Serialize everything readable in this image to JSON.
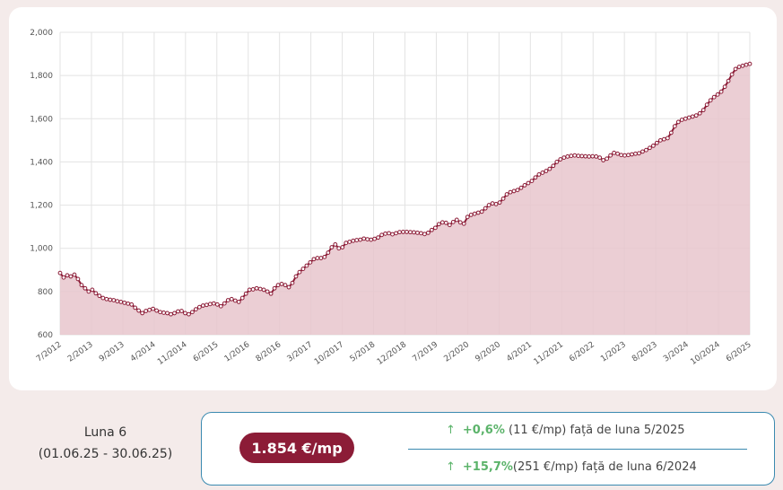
{
  "chart_data": {
    "type": "area",
    "x_tick_labels": [
      "7/2012",
      "2/2013",
      "9/2013",
      "4/2014",
      "11/2014",
      "6/2015",
      "1/2016",
      "8/2016",
      "3/2017",
      "10/2017",
      "5/2018",
      "12/2018",
      "7/2019",
      "2/2020",
      "9/2020",
      "4/2021",
      "11/2021",
      "6/2022",
      "1/2023",
      "8/2023",
      "3/2024",
      "10/2024",
      "6/2025"
    ],
    "y_tick_labels": [
      "600",
      "800",
      "1,000",
      "1,200",
      "1,400",
      "1,600",
      "1,800",
      "2,000"
    ],
    "ylim": [
      600,
      2000
    ],
    "grid": true,
    "series": [
      {
        "values": [
          886,
          865,
          875,
          870,
          878,
          858,
          830,
          815,
          800,
          808,
          792,
          780,
          770,
          765,
          762,
          760,
          755,
          752,
          748,
          744,
          740,
          725,
          712,
          700,
          710,
          715,
          720,
          712,
          705,
          702,
          700,
          695,
          700,
          708,
          710,
          700,
          695,
          705,
          718,
          728,
          735,
          738,
          742,
          745,
          740,
          732,
          745,
          760,
          765,
          758,
          752,
          770,
          790,
          808,
          810,
          815,
          812,
          808,
          800,
          790,
          815,
          830,
          835,
          830,
          820,
          840,
          870,
          890,
          905,
          920,
          935,
          950,
          955,
          955,
          960,
          980,
          1005,
          1018,
          1000,
          1005,
          1025,
          1030,
          1035,
          1038,
          1040,
          1045,
          1042,
          1040,
          1044,
          1050,
          1062,
          1068,
          1070,
          1065,
          1070,
          1075,
          1076,
          1076,
          1075,
          1074,
          1072,
          1070,
          1066,
          1072,
          1085,
          1095,
          1112,
          1120,
          1118,
          1108,
          1122,
          1132,
          1120,
          1114,
          1145,
          1155,
          1160,
          1165,
          1170,
          1185,
          1200,
          1208,
          1205,
          1212,
          1230,
          1250,
          1260,
          1265,
          1270,
          1280,
          1292,
          1302,
          1312,
          1328,
          1342,
          1350,
          1358,
          1368,
          1382,
          1400,
          1412,
          1420,
          1425,
          1428,
          1430,
          1428,
          1427,
          1426,
          1425,
          1426,
          1425,
          1420,
          1408,
          1415,
          1430,
          1442,
          1438,
          1432,
          1430,
          1432,
          1435,
          1438,
          1440,
          1448,
          1455,
          1465,
          1475,
          1488,
          1500,
          1505,
          1510,
          1535,
          1565,
          1585,
          1595,
          1600,
          1605,
          1610,
          1615,
          1625,
          1640,
          1665,
          1685,
          1700,
          1712,
          1725,
          1748,
          1775,
          1805,
          1830,
          1840,
          1845,
          1850,
          1854
        ]
      }
    ]
  },
  "colors": {
    "line": "#8c1c37",
    "fill": "#e8c6cd",
    "accent": "#8c1c37",
    "positive": "#5bb36a",
    "border": "#3a8ab0"
  },
  "period": {
    "label": "Luna 6",
    "range": "(01.06.25 - 30.06.25)"
  },
  "price": {
    "value": "1.854 €/mp"
  },
  "changes": [
    {
      "arrow": "↑",
      "percent": "+0,6%",
      "amount": " (11 €/mp)",
      "reference": "  față de luna 5/2025"
    },
    {
      "arrow": "↑",
      "percent": "+15,7%",
      "amount": "(251 €/mp)",
      "reference": " față de luna 6/2024"
    }
  ]
}
